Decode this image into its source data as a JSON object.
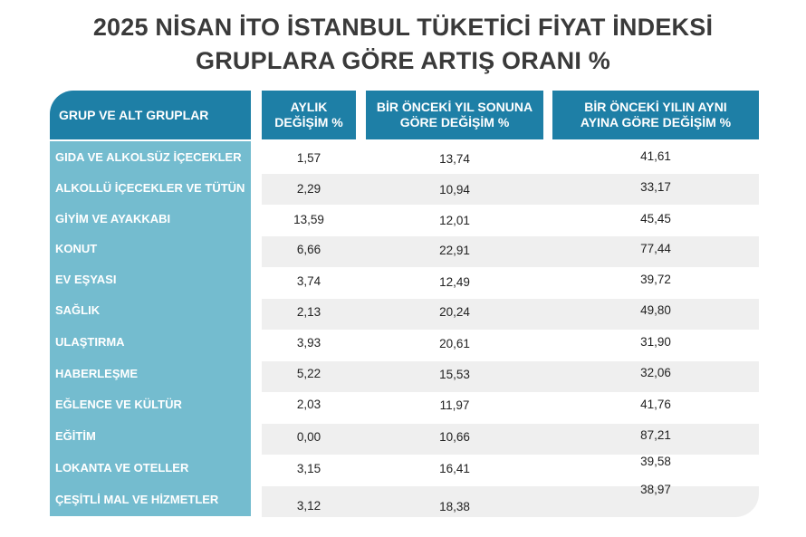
{
  "title_line1": "2025 NİSAN İTO İSTANBUL TÜKETİCİ FİYAT İNDEKSİ",
  "title_line2": "GRUPLARA GÖRE ARTIŞ ORANI %",
  "headers": {
    "group": "GRUP VE ALT GRUPLAR",
    "monthly": "AYLIK\nDEĞİŞİM %",
    "ytd": "BİR ÖNCEKİ YIL SONUNA\nGÖRE DEĞİŞİM %",
    "yoy": "BİR ÖNCEKİ YILIN AYNI\nAYINA GÖRE DEĞİŞİM %"
  },
  "rows": [
    {
      "group": "GIDA VE ALKOLSÜZ İÇECEKLER",
      "monthly": "1,57",
      "ytd": "13,74",
      "yoy": "41,61"
    },
    {
      "group": "ALKOLLÜ İÇECEKLER VE TÜTÜN",
      "monthly": "2,29",
      "ytd": "10,94",
      "yoy": "33,17"
    },
    {
      "group": "GİYİM VE AYAKKABI",
      "monthly": "13,59",
      "ytd": "12,01",
      "yoy": "45,45"
    },
    {
      "group": "KONUT",
      "monthly": "6,66",
      "ytd": "22,91",
      "yoy": "77,44"
    },
    {
      "group": "EV EŞYASI",
      "monthly": "3,74",
      "ytd": "12,49",
      "yoy": "39,72"
    },
    {
      "group": "SAĞLIK",
      "monthly": "2,13",
      "ytd": "20,24",
      "yoy": "49,80"
    },
    {
      "group": "ULAŞTIRMA",
      "monthly": "3,93",
      "ytd": "20,61",
      "yoy": "31,90"
    },
    {
      "group": "HABERLEŞME",
      "monthly": "5,22",
      "ytd": "15,53",
      "yoy": "32,06"
    },
    {
      "group": "EĞLENCE VE KÜLTÜR",
      "monthly": "2,03",
      "ytd": "11,97",
      "yoy": "41,76"
    },
    {
      "group": "EĞİTİM",
      "monthly": "0,00",
      "ytd": "10,66",
      "yoy": "87,21"
    },
    {
      "group": "LOKANTA VE OTELLER",
      "monthly": "3,15",
      "ytd": "16,41",
      "yoy": "39,58"
    },
    {
      "group": "ÇEŞİTLİ MAL VE HİZMETLER",
      "monthly": "3,12",
      "ytd": "18,38",
      "yoy": "38,97"
    }
  ],
  "colors": {
    "header_bg": "#1e7fa6",
    "group_column_bg": "#74bccf",
    "stripe_bg": "#efefef",
    "title_text": "#3a3a3a"
  }
}
